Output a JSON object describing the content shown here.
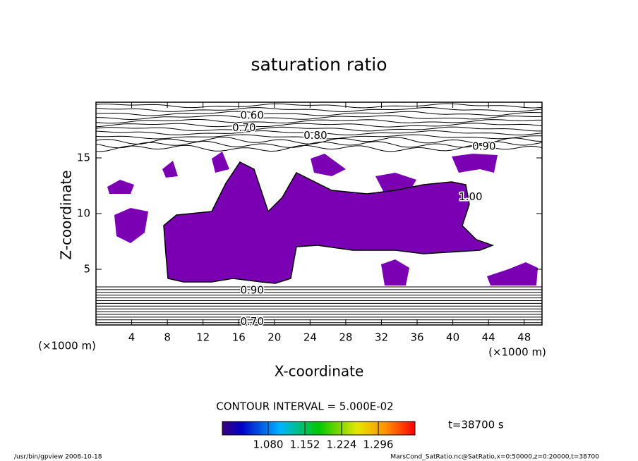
{
  "chart_data": {
    "type": "contour",
    "title": "saturation ratio",
    "x_label": "X-coordinate",
    "y_label": "Z-coordinate",
    "x_unit": "(×1000 m)",
    "y_unit": "(×1000 m)",
    "xlim": [
      0,
      50
    ],
    "ylim": [
      0,
      20
    ],
    "xticks": [
      4,
      8,
      12,
      16,
      20,
      24,
      28,
      32,
      36,
      40,
      44,
      48
    ],
    "yticks": [
      5,
      10,
      15
    ],
    "fill_color": "#7b00b4",
    "contour_labels": [
      {
        "value": 0.6,
        "label": "0.60",
        "x": 17.5,
        "y": 18.8
      },
      {
        "value": 0.7,
        "label": "0.70",
        "x": 16.6,
        "y": 17.7
      },
      {
        "value": 0.8,
        "label": "0.80",
        "x": 24.6,
        "y": 17.0
      },
      {
        "value": 0.9,
        "label": "0.90",
        "x": 43.5,
        "y": 16.0
      },
      {
        "value": 1.0,
        "label": "1.00",
        "x": 42.0,
        "y": 11.5
      },
      {
        "value": 0.7,
        "label": "0.70",
        "x": 17.5,
        "y": 0.3
      },
      {
        "value": 0.9,
        "label": "0.90",
        "x": 17.5,
        "y": 3.1
      }
    ],
    "contour_interval": "CONTOUR INTERVAL = 5.000E-02",
    "colorbar": {
      "clim": [
        0.99,
        1.368
      ],
      "ticks": [
        {
          "value": 1.08,
          "label": "1.080"
        },
        {
          "value": 1.152,
          "label": "1.152"
        },
        {
          "value": 1.224,
          "label": "1.224"
        },
        {
          "value": 1.296,
          "label": "1.296"
        }
      ]
    },
    "time_label": "t=38700 s",
    "footer_left": "/usr/bin/gpview   2008-10-18",
    "footer_right": "MarsCond_SatRatio.nc@SatRatio,x=0:50000,z=0:20000,t=38700"
  }
}
